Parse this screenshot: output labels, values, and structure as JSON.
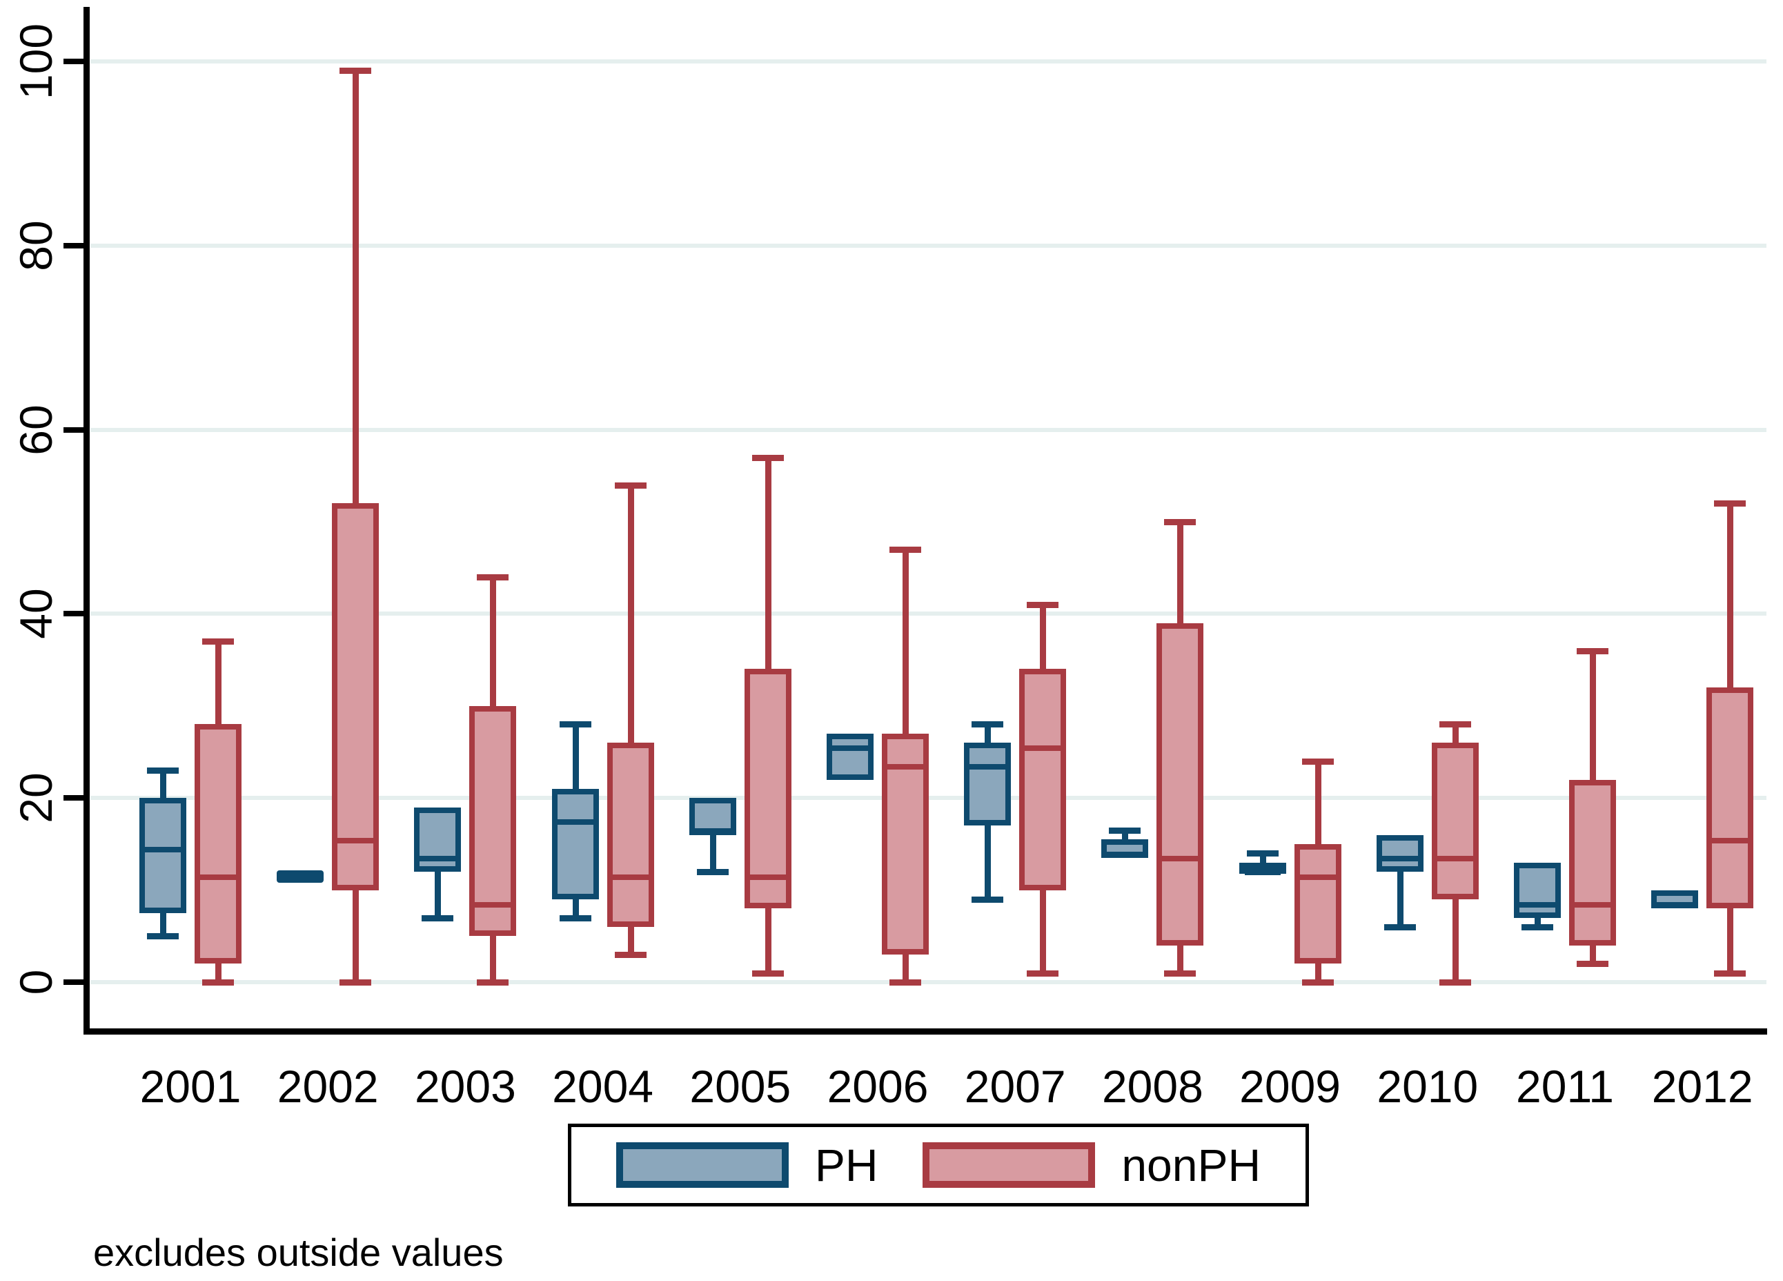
{
  "chart_data": {
    "type": "boxplot",
    "title": "",
    "note": "excludes outside values",
    "categories": [
      "2001",
      "2002",
      "2003",
      "2004",
      "2005",
      "2006",
      "2007",
      "2008",
      "2009",
      "2010",
      "2011",
      "2012"
    ],
    "y_axis": {
      "ticks": [
        0,
        20,
        40,
        60,
        80,
        100
      ],
      "range": [
        0,
        100
      ],
      "grid": true
    },
    "legend_position": "bottom",
    "colors": {
      "ph_fill": "#8ba7bc",
      "ph_border": "#0e4a6e",
      "nonph_fill": "#d89ba1",
      "nonph_border": "#a83b42",
      "gridline": "#e5efee",
      "axis": "#000000",
      "background": "#ffffff"
    },
    "series": [
      {
        "name": "PH",
        "fill": "#8ba7bc",
        "border": "#0e4a6e",
        "boxes": [
          {
            "year": "2001",
            "whisker_high": 23,
            "q3": 20,
            "median": 15,
            "q1": 7.5,
            "whisker_low": 5
          },
          {
            "year": "2002",
            "whisker_high": 11.5,
            "q3": 11.5,
            "median": 11.5,
            "q1": 11.5,
            "whisker_low": 11.5
          },
          {
            "year": "2003",
            "whisker_high": 19,
            "q3": 19,
            "median": 14,
            "q1": 12,
            "whisker_low": 7
          },
          {
            "year": "2004",
            "whisker_high": 28,
            "q3": 21,
            "median": 18,
            "q1": 9,
            "whisker_low": 7
          },
          {
            "year": "2005",
            "whisker_high": 20,
            "q3": 20,
            "median": 17,
            "q1": 16,
            "whisker_low": 12
          },
          {
            "year": "2006",
            "whisker_high": 27,
            "q3": 27,
            "median": 26,
            "q1": 22,
            "whisker_low": 22
          },
          {
            "year": "2007",
            "whisker_high": 28,
            "q3": 26,
            "median": 24,
            "q1": 17,
            "whisker_low": 9
          },
          {
            "year": "2008",
            "whisker_high": 16.5,
            "q3": 15.5,
            "median": 14.5,
            "q1": 13.5,
            "whisker_low": 13.5
          },
          {
            "year": "2009",
            "whisker_high": 14,
            "q3": 13,
            "median": 12.5,
            "q1": 12,
            "whisker_low": 12
          },
          {
            "year": "2010",
            "whisker_high": 16,
            "q3": 16,
            "median": 14,
            "q1": 12,
            "whisker_low": 6
          },
          {
            "year": "2011",
            "whisker_high": 13,
            "q3": 13,
            "median": 9,
            "q1": 7,
            "whisker_low": 6
          },
          {
            "year": "2012",
            "whisker_high": 10,
            "q3": 10,
            "median": 9,
            "q1": 8,
            "whisker_low": 8
          }
        ]
      },
      {
        "name": "nonPH",
        "fill": "#d89ba1",
        "border": "#a83b42",
        "boxes": [
          {
            "year": "2001",
            "whisker_high": 37,
            "q3": 28,
            "median": 12,
            "q1": 2,
            "whisker_low": 0
          },
          {
            "year": "2002",
            "whisker_high": 99,
            "q3": 52,
            "median": 16,
            "q1": 10,
            "whisker_low": 0
          },
          {
            "year": "2003",
            "whisker_high": 44,
            "q3": 30,
            "median": 9,
            "q1": 5,
            "whisker_low": 0
          },
          {
            "year": "2004",
            "whisker_high": 54,
            "q3": 26,
            "median": 12,
            "q1": 6,
            "whisker_low": 3
          },
          {
            "year": "2005",
            "whisker_high": 57,
            "q3": 34,
            "median": 12,
            "q1": 8,
            "whisker_low": 1
          },
          {
            "year": "2006",
            "whisker_high": 47,
            "q3": 27,
            "median": 24,
            "q1": 3,
            "whisker_low": 0
          },
          {
            "year": "2007",
            "whisker_high": 41,
            "q3": 34,
            "median": 26,
            "q1": 10,
            "whisker_low": 1
          },
          {
            "year": "2008",
            "whisker_high": 50,
            "q3": 39,
            "median": 14,
            "q1": 4,
            "whisker_low": 1
          },
          {
            "year": "2009",
            "whisker_high": 24,
            "q3": 15,
            "median": 12,
            "q1": 2,
            "whisker_low": 0
          },
          {
            "year": "2010",
            "whisker_high": 28,
            "q3": 26,
            "median": 14,
            "q1": 9,
            "whisker_low": 0
          },
          {
            "year": "2011",
            "whisker_high": 36,
            "q3": 22,
            "median": 9,
            "q1": 4,
            "whisker_low": 2
          },
          {
            "year": "2012",
            "whisker_high": 52,
            "q3": 32,
            "median": 16,
            "q1": 8,
            "whisker_low": 1
          }
        ]
      }
    ]
  },
  "legend": {
    "ph_label": "PH",
    "nonph_label": "nonPH"
  }
}
